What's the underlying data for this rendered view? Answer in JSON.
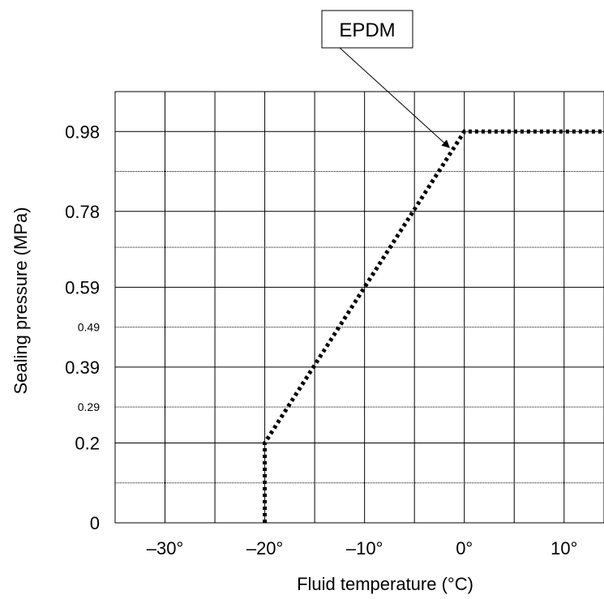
{
  "chart_data": {
    "type": "line",
    "xlabel": "Fluid temperature (°C)",
    "ylabel": "Sealing pressure (MPa)",
    "xlim": [
      -35,
      14
    ],
    "ylim": [
      0,
      1.08
    ],
    "x_ticks": [
      {
        "value": -30,
        "label": "–30°"
      },
      {
        "value": -20,
        "label": "–20°"
      },
      {
        "value": -10,
        "label": "–10°"
      },
      {
        "value": 0,
        "label": "0°"
      },
      {
        "value": 10,
        "label": "10°"
      }
    ],
    "y_ticks_major": [
      {
        "value": 0,
        "label": "0"
      },
      {
        "value": 0.2,
        "label": "0.2"
      },
      {
        "value": 0.39,
        "label": "0.39"
      },
      {
        "value": 0.59,
        "label": "0.59"
      },
      {
        "value": 0.78,
        "label": "0.78"
      },
      {
        "value": 0.98,
        "label": "0.98"
      }
    ],
    "y_ticks_minor": [
      {
        "value": 0.1,
        "label": ""
      },
      {
        "value": 0.29,
        "label": "0.29"
      },
      {
        "value": 0.49,
        "label": "0.49"
      },
      {
        "value": 0.69,
        "label": ""
      },
      {
        "value": 0.88,
        "label": ""
      }
    ],
    "vertical_grid_x": [
      -30,
      -25,
      -20,
      -15,
      -10,
      -5,
      0,
      5,
      10
    ],
    "grid": true,
    "series": [
      {
        "name": "EPDM",
        "style": "dotted",
        "color": "#000000",
        "points": [
          {
            "x": -20,
            "y": 0
          },
          {
            "x": -20,
            "y": 0.2
          },
          {
            "x": 0,
            "y": 0.98
          },
          {
            "x": 14,
            "y": 0.98
          }
        ]
      }
    ],
    "annotations": [
      {
        "text": "EPDM",
        "target": {
          "x": -1.5,
          "y": 0.94
        }
      }
    ]
  }
}
